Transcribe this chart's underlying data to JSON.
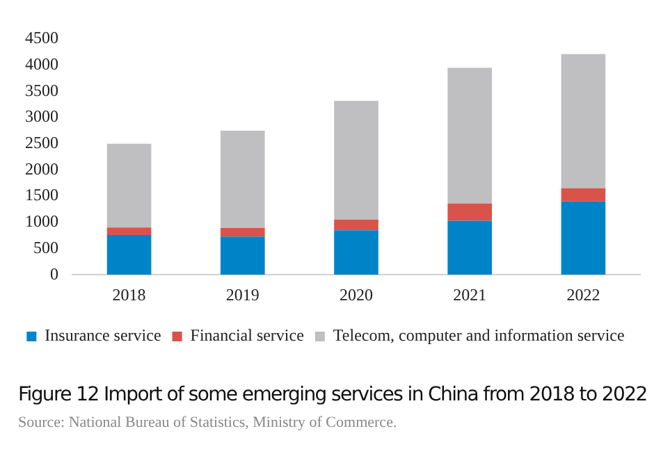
{
  "chart_data": {
    "type": "bar",
    "title": "Figure 12 Import of some emerging services in China from 2018 to 2022",
    "categories": [
      "2018",
      "2019",
      "2020",
      "2021",
      "2022"
    ],
    "stacked": true,
    "series": [
      {
        "name": "Insurance service",
        "color": "#0084c8",
        "values": [
          760,
          730,
          850,
          1030,
          1400
        ]
      },
      {
        "name": "Financial service",
        "color": "#d9534a",
        "values": [
          140,
          160,
          200,
          330,
          250
        ]
      },
      {
        "name": "Telecom, computer and information service",
        "color": "#bfbfc1",
        "values": [
          1600,
          1860,
          2270,
          2590,
          2560
        ]
      }
    ],
    "ylim": [
      0,
      4500
    ],
    "yticks": [
      0,
      500,
      1000,
      1500,
      2000,
      2500,
      3000,
      3500,
      4000,
      4500
    ],
    "grid": false,
    "legend": "bottom",
    "annotations": [
      "Source: National Bureau of Statistics, Ministry of Commerce."
    ]
  }
}
